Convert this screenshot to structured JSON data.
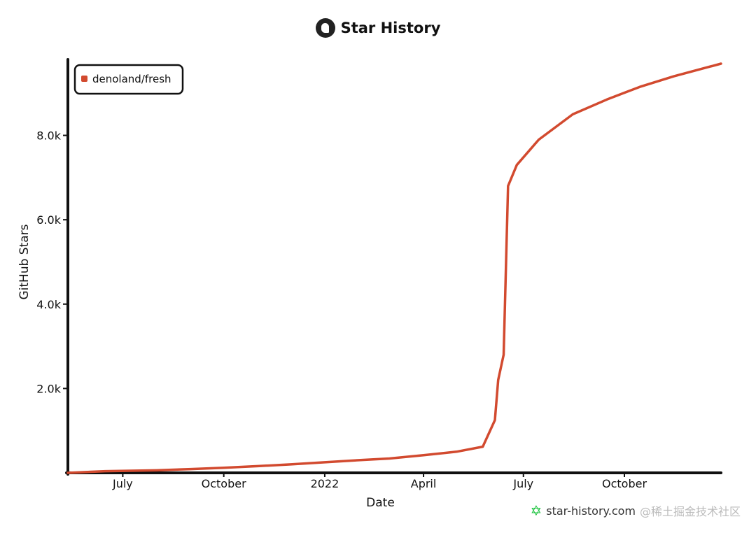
{
  "header": {
    "title": "Star History"
  },
  "watermark": {
    "text": "star-history.com",
    "overlay_text": "@稀土掘金技术社区"
  },
  "colors": {
    "series": "#d24a2f",
    "axis": "#111111",
    "watermark_icon": "#17c23a"
  },
  "chart_data": {
    "type": "line",
    "title": "Star History",
    "xlabel": "Date",
    "ylabel": "GitHub Stars",
    "ylim": [
      0,
      9800
    ],
    "xlim": [
      "2021-05-12",
      "2022-12-28"
    ],
    "x_ticks": [
      {
        "label": "July",
        "date": "2021-07-01"
      },
      {
        "label": "October",
        "date": "2021-10-01"
      },
      {
        "label": "2022",
        "date": "2022-01-01"
      },
      {
        "label": "April",
        "date": "2022-04-01"
      },
      {
        "label": "July",
        "date": "2022-07-01"
      },
      {
        "label": "October",
        "date": "2022-10-01"
      }
    ],
    "y_ticks": [
      {
        "label": "2.0k",
        "value": 2000
      },
      {
        "label": "4.0k",
        "value": 4000
      },
      {
        "label": "6.0k",
        "value": 6000
      },
      {
        "label": "8.0k",
        "value": 8000
      }
    ],
    "legend_position": "top-left",
    "series": [
      {
        "name": "denoland/fresh",
        "color": "#d24a2f",
        "points": [
          [
            "2021-05-12",
            0
          ],
          [
            "2021-06-15",
            40
          ],
          [
            "2021-08-01",
            60
          ],
          [
            "2021-09-01",
            90
          ],
          [
            "2021-10-01",
            120
          ],
          [
            "2021-11-01",
            160
          ],
          [
            "2021-12-01",
            200
          ],
          [
            "2022-01-01",
            250
          ],
          [
            "2022-02-01",
            300
          ],
          [
            "2022-03-01",
            340
          ],
          [
            "2022-04-01",
            420
          ],
          [
            "2022-05-01",
            500
          ],
          [
            "2022-05-25",
            620
          ],
          [
            "2022-06-05",
            1250
          ],
          [
            "2022-06-08",
            2200
          ],
          [
            "2022-06-13",
            2800
          ],
          [
            "2022-06-17",
            6800
          ],
          [
            "2022-06-25",
            7300
          ],
          [
            "2022-07-15",
            7900
          ],
          [
            "2022-08-15",
            8500
          ],
          [
            "2022-09-15",
            8850
          ],
          [
            "2022-10-15",
            9150
          ],
          [
            "2022-11-15",
            9400
          ],
          [
            "2022-12-28",
            9700
          ]
        ]
      }
    ]
  }
}
